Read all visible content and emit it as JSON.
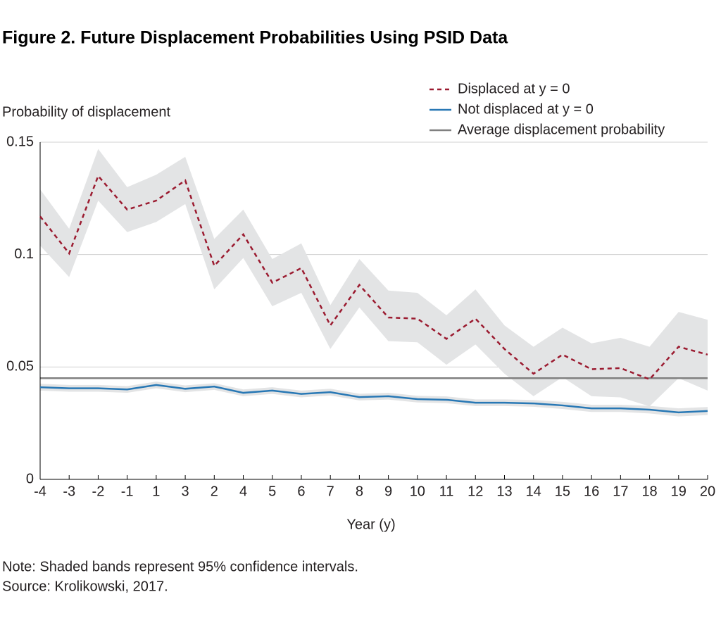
{
  "chart_data": {
    "type": "line",
    "title": "Figure 2. Future Displacement Probabilities Using PSID Data",
    "y_label": "Probability of displacement",
    "x_label": "Year (y)",
    "notes": [
      "Note: Shaded bands represent 95% confidence intervals.",
      "Source: Krolikowski, 2017."
    ],
    "categories": [
      "-4",
      "-3",
      "-2",
      "-1",
      "1",
      "3",
      "2",
      "4",
      "5",
      "6",
      "7",
      "8",
      "9",
      "10",
      "11",
      "12",
      "13",
      "14",
      "15",
      "16",
      "17",
      "18",
      "19",
      "20"
    ],
    "ylim": [
      0,
      0.15
    ],
    "yticks": [
      0,
      0.05,
      0.1,
      0.15
    ],
    "grid": true,
    "legend": "top-right",
    "band_color": "#e3e4e5",
    "series": [
      {
        "name": "Displaced at y = 0",
        "color": "#9b1b30",
        "dashed": true,
        "values": [
          0.117,
          0.1005,
          0.135,
          0.12,
          0.124,
          0.133,
          0.095,
          0.109,
          0.0875,
          0.094,
          0.0685,
          0.0865,
          0.072,
          0.0715,
          0.0625,
          0.0715,
          0.058,
          0.047,
          0.0555,
          0.049,
          0.0495,
          0.0445,
          0.059,
          0.0555
        ],
        "upper": [
          0.129,
          0.1115,
          0.147,
          0.13,
          0.1355,
          0.1435,
          0.107,
          0.12,
          0.098,
          0.105,
          0.0775,
          0.098,
          0.084,
          0.083,
          0.073,
          0.0845,
          0.0685,
          0.059,
          0.0675,
          0.0605,
          0.063,
          0.059,
          0.0745,
          0.071
        ],
        "lower": [
          0.104,
          0.09,
          0.124,
          0.11,
          0.1145,
          0.1225,
          0.0845,
          0.0985,
          0.077,
          0.083,
          0.058,
          0.0765,
          0.0615,
          0.061,
          0.051,
          0.06,
          0.047,
          0.037,
          0.0455,
          0.037,
          0.0365,
          0.0325,
          0.045,
          0.0395
        ]
      },
      {
        "name": "Not displaced at y = 0",
        "color": "#2878b5",
        "dashed": false,
        "values": [
          0.041,
          0.0405,
          0.0405,
          0.04,
          0.042,
          0.0403,
          0.0413,
          0.0385,
          0.0395,
          0.038,
          0.0388,
          0.0366,
          0.037,
          0.0357,
          0.0354,
          0.0341,
          0.0341,
          0.0338,
          0.0329,
          0.0316,
          0.0316,
          0.031,
          0.0298,
          0.0304
        ],
        "upper": [
          0.0425,
          0.042,
          0.042,
          0.0415,
          0.0435,
          0.0418,
          0.0428,
          0.04,
          0.041,
          0.0395,
          0.0403,
          0.0381,
          0.0385,
          0.0372,
          0.0369,
          0.0356,
          0.0356,
          0.0353,
          0.0345,
          0.0332,
          0.0332,
          0.0327,
          0.0316,
          0.0322
        ],
        "lower": [
          0.0395,
          0.039,
          0.039,
          0.0385,
          0.0405,
          0.0388,
          0.0398,
          0.037,
          0.038,
          0.0365,
          0.0373,
          0.0351,
          0.0355,
          0.0342,
          0.0339,
          0.0326,
          0.0326,
          0.0323,
          0.0313,
          0.03,
          0.03,
          0.0293,
          0.028,
          0.0286
        ]
      }
    ],
    "reference_line": {
      "name": "Average displacement probability",
      "color": "#808080",
      "value": 0.045
    }
  }
}
